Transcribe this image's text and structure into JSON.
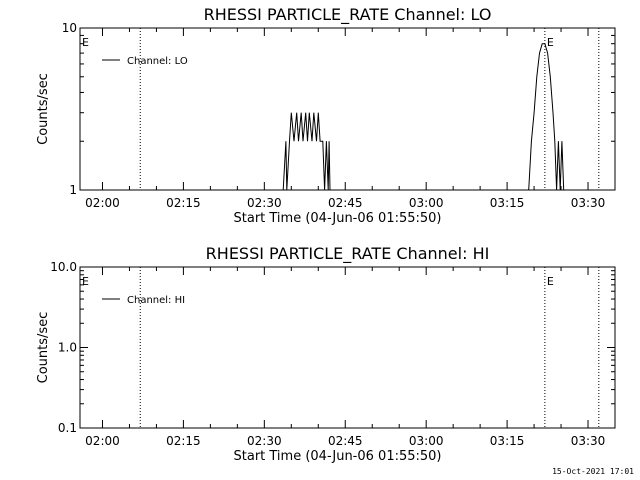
{
  "footer": {
    "timestamp": "15-Oct-2021 17:01"
  },
  "chart_data": [
    {
      "type": "line",
      "title": "RHESSI PARTICLE_RATE Channel: LO",
      "xlabel": "Start Time (04-Jun-06 01:55:50)",
      "ylabel": "Counts/sec",
      "yscale": "log",
      "ylim": [
        1,
        10
      ],
      "xlim": [
        "01:55:50",
        "03:35:00"
      ],
      "yticks": [
        "1",
        "10"
      ],
      "xticks": [
        "02:00",
        "02:15",
        "02:30",
        "02:45",
        "03:00",
        "03:15",
        "03:30"
      ],
      "legend": {
        "position": "top-left"
      },
      "markers": [
        {
          "label": "E",
          "time": "01:55:50"
        },
        {
          "label": "E",
          "time": "03:22:00"
        }
      ],
      "vlines": [
        "02:07:00",
        "03:22:00",
        "03:32:00"
      ],
      "series": [
        {
          "name": "Channel: LO",
          "x": [
            "02:33:30",
            "02:34:00",
            "02:34:10",
            "02:34:40",
            "02:35:00",
            "02:35:30",
            "02:36:00",
            "02:36:20",
            "02:36:50",
            "02:37:10",
            "02:37:40",
            "02:38:00",
            "02:38:20",
            "02:38:50",
            "02:39:10",
            "02:39:40",
            "02:40:00",
            "02:40:20",
            "02:40:50",
            "02:41:10",
            "02:41:30",
            "02:41:50",
            "02:42:00",
            "02:42:10",
            "02:42:30",
            "02:42:40",
            "03:19:00",
            "03:19:30",
            "03:20:00",
            "03:20:30",
            "03:21:00",
            "03:21:30",
            "03:22:00",
            "03:22:30",
            "03:23:00",
            "03:23:30",
            "03:23:50",
            "03:24:10",
            "03:24:30",
            "03:24:50",
            "03:25:10",
            "03:25:30",
            "03:25:50",
            "03:26:10"
          ],
          "y": [
            1,
            2,
            1,
            2,
            3,
            2,
            3,
            2,
            3,
            2,
            3,
            2,
            3,
            2,
            3,
            2,
            3,
            2,
            2,
            1,
            2,
            1,
            2,
            1,
            1,
            1,
            1,
            2,
            3,
            5,
            7,
            8,
            8,
            7,
            5,
            3,
            2,
            1,
            2,
            1,
            2,
            1,
            1,
            1
          ]
        }
      ]
    },
    {
      "type": "line",
      "title": "RHESSI PARTICLE_RATE Channel: HI",
      "xlabel": "Start Time (04-Jun-06 01:55:50)",
      "ylabel": "Counts/sec",
      "yscale": "log",
      "ylim": [
        0.1,
        10
      ],
      "xlim": [
        "01:55:50",
        "03:35:00"
      ],
      "yticks": [
        "0.1",
        "1.0",
        "10.0"
      ],
      "xticks": [
        "02:00",
        "02:15",
        "02:30",
        "02:45",
        "03:00",
        "03:15",
        "03:30"
      ],
      "legend": {
        "position": "top-left"
      },
      "markers": [
        {
          "label": "E",
          "time": "01:55:50"
        },
        {
          "label": "E",
          "time": "03:22:00"
        }
      ],
      "vlines": [
        "02:07:00",
        "03:22:00",
        "03:32:00"
      ],
      "series": [
        {
          "name": "Channel: HI",
          "x": [],
          "y": []
        }
      ]
    }
  ]
}
